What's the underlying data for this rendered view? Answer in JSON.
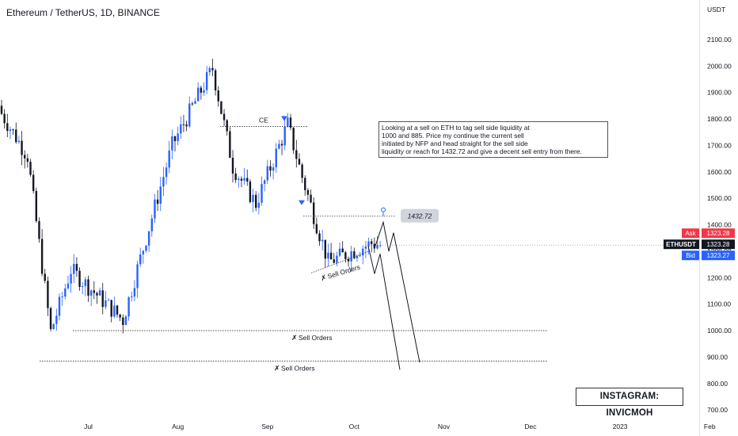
{
  "header": {
    "symbol_title": "Ethereum / TetherUS, 1D, BINANCE"
  },
  "price_scale": {
    "unit": "USDT",
    "ticks": [
      "2100.00",
      "2000.00",
      "1900.00",
      "1800.00",
      "1700.00",
      "1600.00",
      "1500.00",
      "1400.00",
      "1300.00",
      "1200.00",
      "1100.00",
      "1000.00",
      "900.00",
      "800.00",
      "700.00"
    ]
  },
  "time_axis": {
    "labels": [
      "Jul",
      "Aug",
      "Sep",
      "Oct",
      "Nov",
      "Dec",
      "2023",
      "Feb"
    ]
  },
  "quote_badges": {
    "ask_label": "Ask",
    "ask_value": "1323.28",
    "symbol_label": "ETHUSDT",
    "last_value": "1323.28",
    "bid_label": "Bid",
    "bid_value": "1323.27",
    "ask_color": "#f23645",
    "bid_color": "#2962ff",
    "last_color": "#131722"
  },
  "annotations": {
    "ce_label": "CE",
    "price_label": "1432.72",
    "sell_orders_upper": "Sell Orders",
    "sell_orders_1000": "Sell Orders",
    "sell_orders_885": "Sell Orders",
    "text_box_lines": [
      "Looking at a sell on ETH to tag sell side liquidity at",
      "1000 and 885. Price my continue the current sell",
      "initiated by NFP and head straight for the sell side",
      "liquidity or reach for 1432.72 and give a decent sell entry from there."
    ],
    "instagram": "INSTAGRAM: INVICMOH",
    "marker_color": "#2962ff"
  },
  "chart_data": {
    "type": "candlestick",
    "title": "Ethereum / TetherUS, 1D, BINANCE",
    "y_unit": "USDT",
    "ylim": [
      680,
      2170
    ],
    "x_range": [
      "2022-06-01",
      "2023-02-01"
    ],
    "x_ticks": [
      "Jul",
      "Aug",
      "Sep",
      "Oct",
      "Nov",
      "Dec",
      "2023",
      "Feb"
    ],
    "grid": false,
    "up_color": "#2962ff",
    "down_color": "#131722",
    "ohlc_sample": {
      "description_points": [
        {
          "date": "2022-06-01",
          "close": 1820
        },
        {
          "date": "2022-06-10",
          "close": 1660
        },
        {
          "date": "2022-06-18",
          "close": 995
        },
        {
          "date": "2022-06-25",
          "close": 1230
        },
        {
          "date": "2022-07-13",
          "close": 1040
        },
        {
          "date": "2022-07-30",
          "close": 1700
        },
        {
          "date": "2022-08-13",
          "close": 1990
        },
        {
          "date": "2022-08-20",
          "close": 1620
        },
        {
          "date": "2022-08-28",
          "close": 1480
        },
        {
          "date": "2022-09-08",
          "close": 1780
        },
        {
          "date": "2022-09-13",
          "close": 1580
        },
        {
          "date": "2022-09-22",
          "close": 1260
        },
        {
          "date": "2022-10-07",
          "close": 1330
        },
        {
          "date": "2022-10-10",
          "close": 1323
        }
      ]
    },
    "levels": [
      {
        "label": "CE",
        "price": 1772
      },
      {
        "label": "1432.72",
        "price": 1432.72
      },
      {
        "label": "Sell Orders",
        "price": 1000
      },
      {
        "label": "Sell Orders",
        "price": 885
      }
    ],
    "last_price": 1323.28
  }
}
